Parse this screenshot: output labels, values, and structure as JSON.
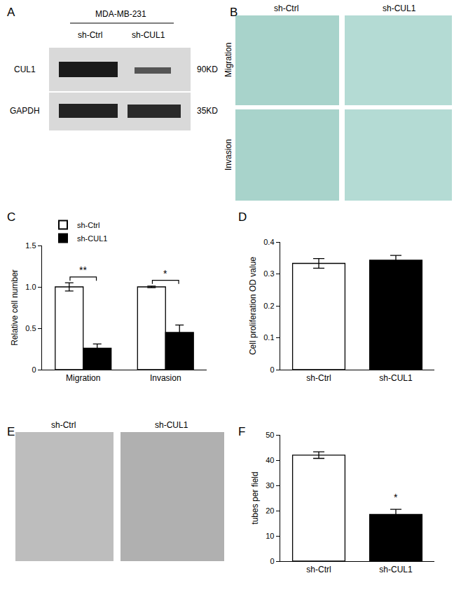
{
  "chart_data": [
    {
      "panel": "C",
      "type": "bar",
      "y_label": "Relative cell number",
      "categories": [
        "Migration",
        "Invasion"
      ],
      "series": [
        {
          "name": "sh-Ctrl",
          "color": "#ffffff",
          "values": [
            1.0,
            1.0
          ],
          "errors": [
            0.05,
            0.01
          ]
        },
        {
          "name": "sh-CUL1",
          "color": "#000000",
          "values": [
            0.26,
            0.45
          ],
          "errors": [
            0.05,
            0.09
          ]
        }
      ],
      "ylim": [
        0,
        1.5
      ],
      "yticks": [
        0,
        0.5,
        {
          "value": 1,
          "label": "1.0"
        },
        1.5
      ],
      "grid": false,
      "legend": "top left",
      "annotations": [
        {
          "text": "**",
          "category": "Migration",
          "y": 1.12
        },
        {
          "text": "*",
          "category": "Invasion",
          "y": 1.08
        }
      ]
    },
    {
      "panel": "D",
      "type": "bar",
      "y_label": "Cell proliferation OD value",
      "categories": [
        "sh-Ctrl",
        "sh-CUL1"
      ],
      "values": [
        0.333,
        0.343
      ],
      "errors": [
        0.015,
        0.015
      ],
      "colors": [
        "#ffffff",
        "#000000"
      ],
      "ylim": [
        0,
        0.4
      ],
      "yticks": [
        0,
        0.1,
        0.2,
        0.3,
        0.4
      ],
      "grid": false
    },
    {
      "panel": "F",
      "type": "bar",
      "y_label": "tubes per field",
      "categories": [
        "sh-Ctrl",
        "sh-CUL1"
      ],
      "values": [
        42,
        18.5
      ],
      "errors": [
        1.3,
        2.0
      ],
      "colors": [
        "#ffffff",
        "#000000"
      ],
      "ylim": [
        0,
        50
      ],
      "yticks": [
        0,
        10,
        20,
        30,
        40,
        50
      ],
      "grid": false,
      "annotations": [
        {
          "text": "*",
          "category": "sh-CUL1",
          "y": 22.5
        }
      ]
    }
  ],
  "images": {
    "A": {
      "panel": "A",
      "title": "MDA-MB-231",
      "lanes": [
        "sh-Ctrl",
        "sh-CUL1"
      ],
      "rows": [
        {
          "label": "CUL1",
          "size": "90KD"
        },
        {
          "label": "GAPDH",
          "size": "35KD"
        }
      ]
    },
    "B": {
      "panel": "B",
      "columns": [
        "sh-Ctrl",
        "sh-CUL1"
      ],
      "rows": [
        "Migration",
        "Invasion"
      ]
    },
    "E": {
      "panel": "E",
      "columns": [
        "sh-Ctrl",
        "sh-CUL1"
      ]
    }
  }
}
